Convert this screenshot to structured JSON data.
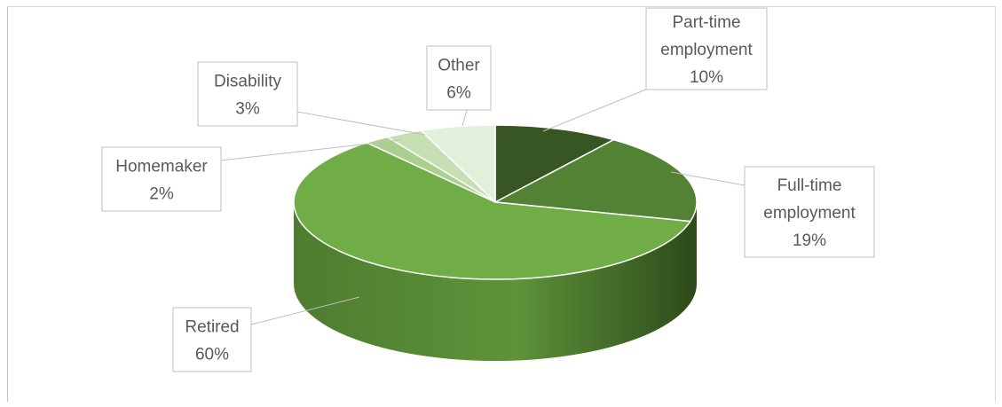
{
  "chart_data": {
    "type": "pie",
    "style": "3d",
    "title": "",
    "slices": [
      {
        "label": "Part-time employment",
        "value": 10,
        "display": "10%",
        "color": "#375623"
      },
      {
        "label": "Full-time employment",
        "value": 19,
        "display": "19%",
        "color": "#548235"
      },
      {
        "label": "Retired",
        "value": 60,
        "display": "60%",
        "color": "#70ad47"
      },
      {
        "label": "Homemaker",
        "value": 2,
        "display": "2%",
        "color": "#a9d08e"
      },
      {
        "label": "Disability",
        "value": 3,
        "display": "3%",
        "color": "#c6e0b4"
      },
      {
        "label": "Other",
        "value": 6,
        "display": "6%",
        "color": "#e2efda"
      }
    ],
    "legend": "none",
    "data_labels": "callouts"
  },
  "labels": {
    "part_time": [
      "Part-time",
      "employment",
      "10%"
    ],
    "full_time": [
      "Full-time",
      "employment",
      "19%"
    ],
    "retired": [
      "Retired",
      "60%"
    ],
    "homemaker": [
      "Homemaker",
      "2%"
    ],
    "disability": [
      "Disability",
      "3%"
    ],
    "other": [
      "Other",
      "6%"
    ]
  }
}
